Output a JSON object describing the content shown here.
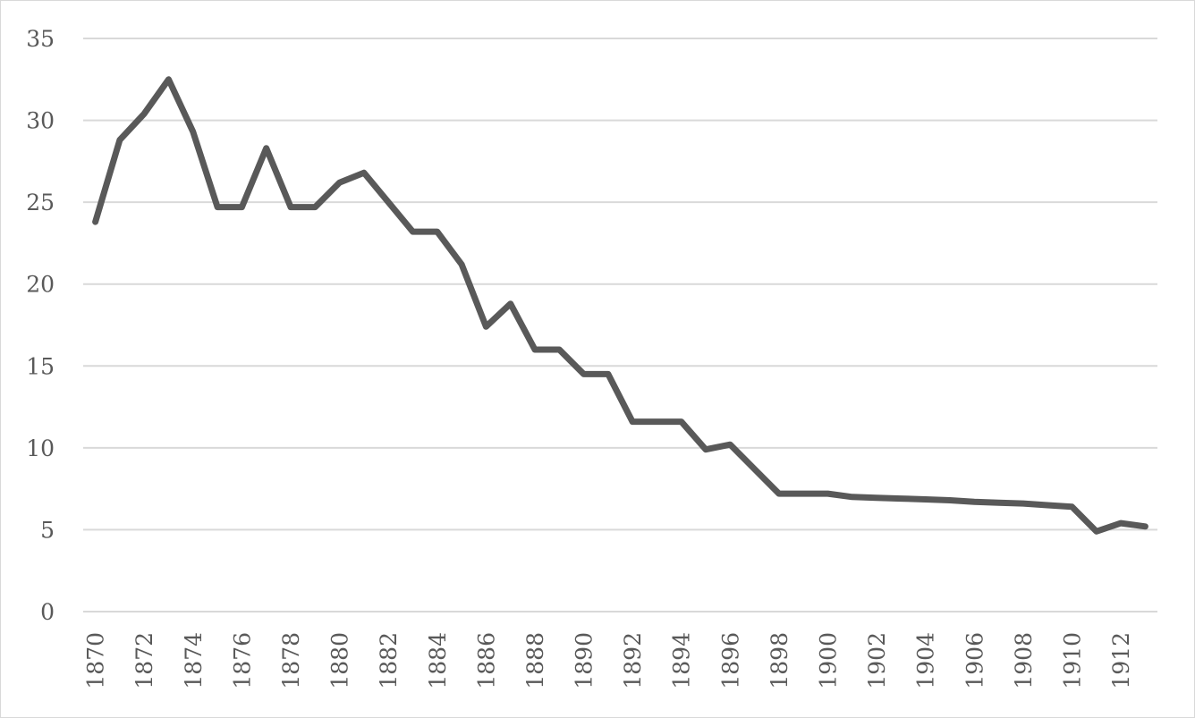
{
  "chart_data": {
    "type": "line",
    "title": "",
    "xlabel": "",
    "ylabel": "",
    "ylim": [
      0,
      35
    ],
    "yticks": [
      0,
      5,
      10,
      15,
      20,
      25,
      30,
      35
    ],
    "xlim": [
      1870,
      1913
    ],
    "xticks": [
      1870,
      1872,
      1874,
      1876,
      1878,
      1880,
      1882,
      1884,
      1886,
      1888,
      1890,
      1892,
      1894,
      1896,
      1898,
      1900,
      1902,
      1904,
      1906,
      1908,
      1910,
      1912
    ],
    "grid": true,
    "legend": "none",
    "series": [
      {
        "color": "#595959",
        "x": [
          1870,
          1871,
          1872,
          1873,
          1874,
          1875,
          1876,
          1877,
          1878,
          1879,
          1880,
          1881,
          1882,
          1883,
          1884,
          1885,
          1886,
          1887,
          1888,
          1889,
          1890,
          1891,
          1892,
          1893,
          1894,
          1895,
          1896,
          1897,
          1898,
          1899,
          1900,
          1901,
          1902,
          1903,
          1904,
          1905,
          1906,
          1907,
          1908,
          1909,
          1910,
          1911,
          1912,
          1913
        ],
        "values": [
          23.8,
          28.8,
          30.4,
          32.5,
          29.3,
          24.7,
          24.7,
          28.3,
          24.7,
          24.7,
          26.2,
          26.8,
          25.0,
          23.2,
          23.2,
          21.2,
          17.4,
          18.8,
          16.0,
          16.0,
          14.5,
          14.5,
          11.6,
          11.6,
          11.6,
          9.9,
          10.2,
          8.7,
          7.2,
          7.2,
          7.2,
          7.0,
          6.95,
          6.9,
          6.85,
          6.8,
          6.7,
          6.65,
          6.6,
          6.5,
          6.4,
          4.9,
          5.4,
          5.2
        ]
      }
    ]
  }
}
